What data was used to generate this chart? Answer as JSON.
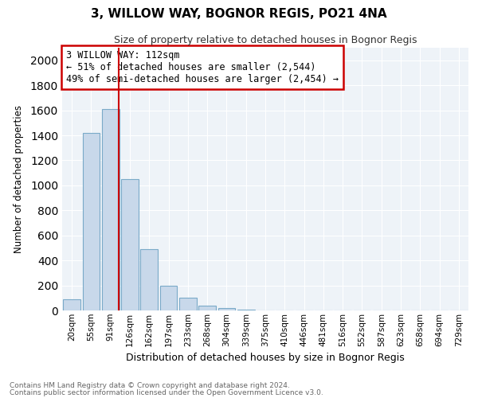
{
  "title": "3, WILLOW WAY, BOGNOR REGIS, PO21 4NA",
  "subtitle": "Size of property relative to detached houses in Bognor Regis",
  "xlabel": "Distribution of detached houses by size in Bognor Regis",
  "ylabel": "Number of detached properties",
  "property_label": "3 WILLOW WAY: 112sqm",
  "annotation_line1": "← 51% of detached houses are smaller (2,544)",
  "annotation_line2": "49% of semi-detached houses are larger (2,454) →",
  "footer_line1": "Contains HM Land Registry data © Crown copyright and database right 2024.",
  "footer_line2": "Contains public sector information licensed under the Open Government Licence v3.0.",
  "bar_color": "#c8d8ea",
  "bar_edge_color": "#7aaac8",
  "vline_color": "#cc0000",
  "annotation_box_edgecolor": "#cc0000",
  "plot_bg_color": "#eef3f8",
  "grid_color": "#ffffff",
  "title_color": "#000000",
  "categories": [
    "20sqm",
    "55sqm",
    "91sqm",
    "126sqm",
    "162sqm",
    "197sqm",
    "233sqm",
    "268sqm",
    "304sqm",
    "339sqm",
    "375sqm",
    "410sqm",
    "446sqm",
    "481sqm",
    "516sqm",
    "552sqm",
    "587sqm",
    "623sqm",
    "658sqm",
    "694sqm",
    "729sqm"
  ],
  "values": [
    90,
    1420,
    1610,
    1050,
    490,
    200,
    100,
    40,
    20,
    5,
    0,
    0,
    0,
    0,
    0,
    0,
    0,
    0,
    0,
    0,
    0
  ],
  "ylim": [
    0,
    2100
  ],
  "yticks": [
    0,
    200,
    400,
    600,
    800,
    1000,
    1200,
    1400,
    1600,
    1800,
    2000
  ],
  "vline_x_index": 2.43
}
